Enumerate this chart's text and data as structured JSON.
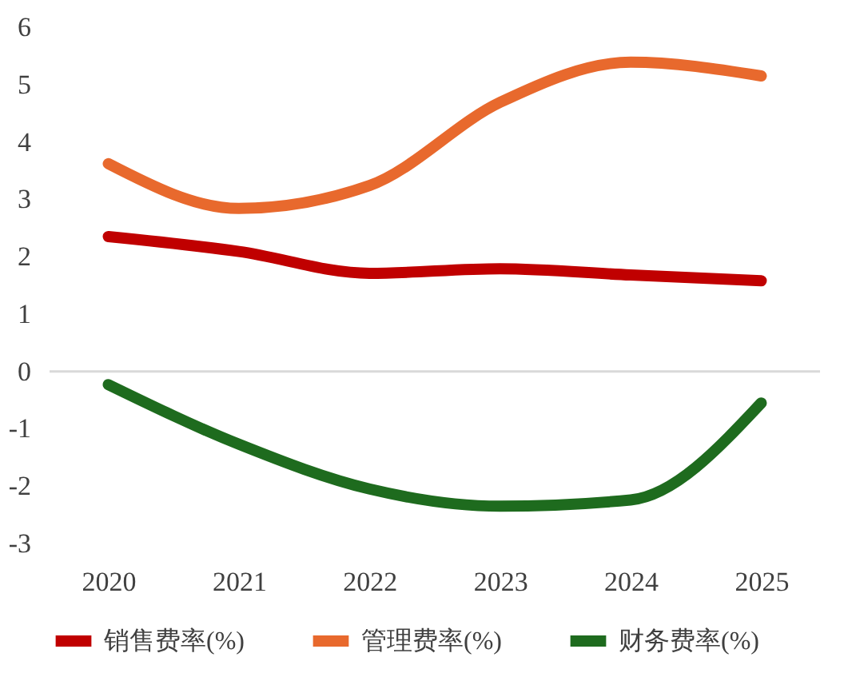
{
  "chart_data": {
    "type": "line",
    "categories": [
      "2020",
      "2021",
      "2022",
      "2023",
      "2024",
      "2025"
    ],
    "series": [
      {
        "name": "销售费率(%)",
        "color": "#c00000",
        "values": [
          2.35,
          2.09,
          1.71,
          1.79,
          1.68,
          1.58
        ]
      },
      {
        "name": "管理费率(%)",
        "color": "#e8692d",
        "values": [
          3.62,
          2.84,
          3.24,
          4.69,
          5.39,
          5.15
        ]
      },
      {
        "name": "财务费率(%)",
        "color": "#1e6b1e",
        "values": [
          -0.23,
          -1.27,
          -2.05,
          -2.35,
          -2.24,
          -0.55
        ]
      }
    ],
    "ylim": [
      -3,
      6
    ],
    "yticks": [
      -3,
      -2,
      -1,
      0,
      1,
      2,
      3,
      4,
      5,
      6
    ],
    "ref_lines": [
      {
        "axis": "y",
        "value": 0,
        "color": "#d9d9d9"
      }
    ],
    "grid": false,
    "legend": "bottom",
    "marker": "none",
    "line_style": "solid"
  }
}
